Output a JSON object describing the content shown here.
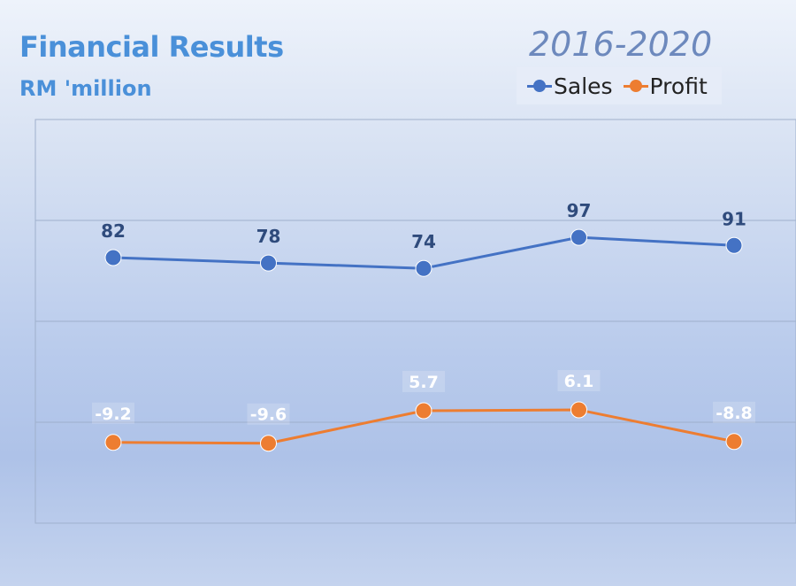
{
  "header": {
    "title": "Financial Results",
    "subtitle": "RM 'million",
    "period": "2016-2020"
  },
  "chart_data": {
    "type": "line",
    "categories": [
      "",
      "",
      "",
      "",
      ""
    ],
    "grid": true,
    "legend_position": "top-right",
    "series": [
      {
        "name": "Sales",
        "color": "#4472c4",
        "values": [
          82,
          78,
          74,
          97,
          91
        ],
        "labels": [
          "82",
          "78",
          "74",
          "97",
          "91"
        ]
      },
      {
        "name": "Profit",
        "color": "#ed7d31",
        "values": [
          -9.2,
          -9.6,
          5.7,
          6.1,
          -8.8
        ],
        "labels": [
          "-9.2",
          "-9.6",
          "5.7",
          "6.1",
          "-8.8"
        ]
      }
    ]
  }
}
